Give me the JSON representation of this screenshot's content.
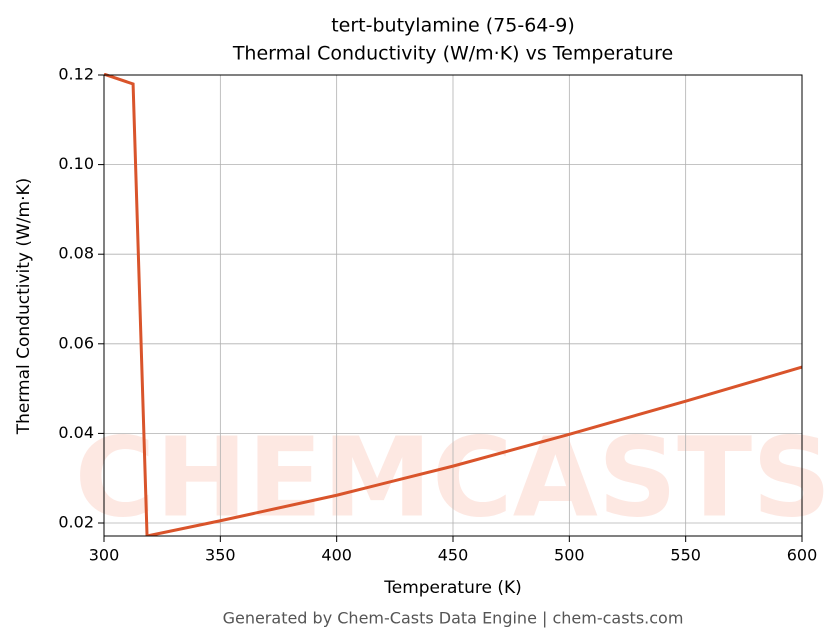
{
  "chart_data": {
    "type": "line",
    "title": "tert-butylamine (75-64-9)",
    "subtitle": "Thermal Conductivity (W/m·K) vs Temperature",
    "x_label": "Temperature (K)",
    "y_label": "Thermal Conductivity (W/m·K)",
    "watermark": "CHEMCASTS",
    "footer": "Generated by Chem-Casts Data Engine | chem-casts.com",
    "x": [
      300,
      312.5,
      318.5,
      350,
      400,
      450,
      500,
      550,
      600
    ],
    "series": [
      {
        "name": "tert-butylamine",
        "color": "#d9542b",
        "values": [
          0.1202,
          0.118,
          0.0171,
          0.0205,
          0.0262,
          0.0327,
          0.0398,
          0.0472,
          0.0548
        ]
      }
    ],
    "xlim": [
      300,
      600
    ],
    "ylim": [
      0.0171,
      0.12
    ],
    "xticks": [
      300,
      350,
      400,
      450,
      500,
      550,
      600
    ],
    "yticks": [
      0.02,
      0.04,
      0.06,
      0.08,
      {
        "value": 0.1,
        "label": "0.10"
      },
      0.12
    ],
    "grid": true
  }
}
